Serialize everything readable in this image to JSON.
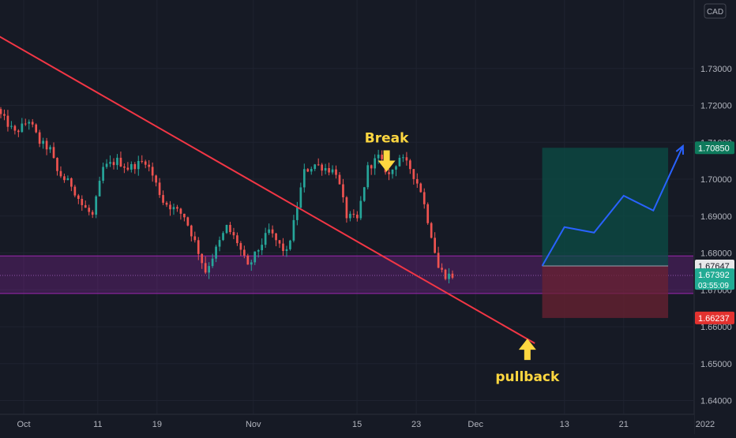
{
  "chart_data": {
    "type": "candlestick",
    "currency_badge": "CAD",
    "x_tick_labels": [
      "Oct",
      "11",
      "19",
      "Nov",
      "15",
      "23",
      "Dec",
      "13",
      "21",
      "2022"
    ],
    "y_ticks": [
      1.64,
      1.65,
      1.66,
      1.67,
      1.68,
      1.69,
      1.7,
      1.71,
      1.72,
      1.73
    ],
    "y_tick_labels": [
      "1.64000",
      "1.65000",
      "1.66000",
      "1.67000",
      "1.68000",
      "1.69000",
      "1.70000",
      "1.71000",
      "1.72000",
      "1.73000"
    ],
    "ylim": [
      1.6345,
      1.736
    ],
    "grid": true,
    "colors": {
      "background": "#161a25",
      "grid": "#1f2330",
      "up": "#26a69a",
      "down": "#ef5350",
      "trendline": "#f23645",
      "zone": "#9c27b0",
      "target_zone": "#0b4d45",
      "stop_zone": "#6b2131",
      "projection": "#2962ff",
      "annotation": "#ffd740"
    },
    "price_series_anchors": [
      [
        0,
        1.7185
      ],
      [
        5,
        1.7125
      ],
      [
        9,
        1.716
      ],
      [
        12,
        1.71
      ],
      [
        15,
        1.708
      ],
      [
        17,
        1.702
      ],
      [
        19,
        1.7
      ],
      [
        21,
        1.6985
      ],
      [
        24,
        1.693
      ],
      [
        27,
        1.69
      ],
      [
        30,
        1.703
      ],
      [
        34,
        1.705
      ],
      [
        37,
        1.703
      ],
      [
        42,
        1.705
      ],
      [
        44,
        1.701
      ],
      [
        47,
        1.694
      ],
      [
        50,
        1.692
      ],
      [
        53,
        1.69
      ],
      [
        56,
        1.683
      ],
      [
        59,
        1.675
      ],
      [
        62,
        1.681
      ],
      [
        65,
        1.687
      ],
      [
        68,
        1.683
      ],
      [
        71,
        1.676
      ],
      [
        74,
        1.681
      ],
      [
        77,
        1.686
      ],
      [
        80,
        1.682
      ],
      [
        82,
        1.68
      ],
      [
        84,
        1.688
      ],
      [
        87,
        1.702
      ],
      [
        90,
        1.704
      ],
      [
        93,
        1.703
      ],
      [
        96,
        1.702
      ],
      [
        99,
        1.69
      ],
      [
        102,
        1.689
      ],
      [
        105,
        1.703
      ],
      [
        108,
        1.706
      ],
      [
        111,
        1.701
      ],
      [
        114,
        1.706
      ],
      [
        117,
        1.703
      ],
      [
        120,
        1.697
      ],
      [
        123,
        1.685
      ],
      [
        125,
        1.676
      ],
      [
        127,
        1.674
      ],
      [
        129,
        1.6739
      ]
    ],
    "trendline": {
      "x1": "Sep-27",
      "y1": 1.7395,
      "x2": "Dec-09",
      "y2": 1.6555
    },
    "support_zone": {
      "top": 1.6792,
      "bottom": 1.669,
      "midline": 1.6739
    },
    "trade_setup": {
      "entry": 1.67647,
      "target": 1.7085,
      "stop": 1.66237,
      "start": "Dec-10",
      "end": "Dec-27"
    },
    "projection_path": [
      [
        "Dec-10",
        1.6765
      ],
      [
        "Dec-13",
        1.687
      ],
      [
        "Dec-17",
        1.6855
      ],
      [
        "Dec-21",
        1.6955
      ],
      [
        "Dec-25",
        1.6915
      ],
      [
        "Dec-29",
        1.709
      ]
    ],
    "annotations": [
      {
        "label": "Break",
        "date": "Nov-19",
        "value": 1.7014
      },
      {
        "label": "pullback",
        "date": "Dec-08",
        "value": 1.651
      }
    ],
    "price_labels": {
      "target": "1.70850",
      "entry": "1.67647",
      "current": "1.67392",
      "timer": "03:55:09",
      "stop": "1.66237"
    }
  }
}
